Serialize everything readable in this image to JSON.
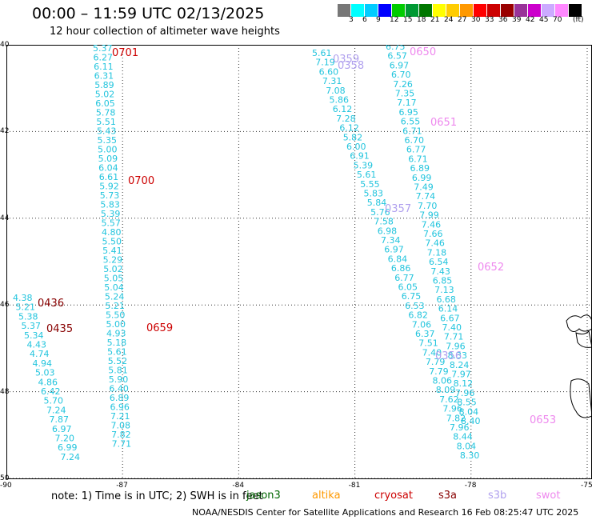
{
  "title": "00:00 – 11:59 UTC 02/13/2025",
  "subtitle": "12 hour collection of altimeter wave heights",
  "colorbar": {
    "colors": [
      "#777777",
      "#00ffff",
      "#00ccff",
      "#0000ff",
      "#00cc00",
      "#009933",
      "#007700",
      "#ffff00",
      "#ffcc00",
      "#ff9900",
      "#ff0000",
      "#cc0000",
      "#990000",
      "#993399",
      "#cc00cc",
      "#ccaaff",
      "#ff88ff",
      "#000000"
    ],
    "labels": [
      "3",
      "6",
      "9",
      "12",
      "15",
      "18",
      "21",
      "24",
      "27",
      "30",
      "33",
      "36",
      "39",
      "42",
      "45",
      "70"
    ],
    "unit": "(ft)"
  },
  "axes": {
    "lat_labels": [
      "40",
      "42",
      "44",
      "46",
      "48",
      "50"
    ],
    "lon_labels": [
      "-90",
      "-87",
      "-84",
      "-81",
      "-78",
      "-75"
    ]
  },
  "tracks": [
    {
      "color": "#22c4dd",
      "values": [
        "5.37",
        "6.27",
        "6.11",
        "6.31",
        "5.89",
        "5.02",
        "6.05",
        "5.78",
        "5.51",
        "5.43",
        "5.35",
        "5.00",
        "5.09",
        "6.04",
        "6.61",
        "5.92",
        "5.73",
        "5.83",
        "5.39",
        "5.57",
        "4.80",
        "5.50",
        "5.41",
        "5.29",
        "5.02",
        "5.05",
        "5.04",
        "5.24",
        "5.21",
        "5.50",
        "5.00",
        "4.93",
        "5.18",
        "5.61",
        "5.52",
        "5.81",
        "5.90",
        "6.40",
        "6.89",
        "6.96",
        "7.21",
        "7.08",
        "7.82",
        "7.71"
      ]
    },
    {
      "color": "#22c4dd",
      "values": [
        "4.38",
        "5.21",
        "5.38",
        "5.37",
        "5.34",
        "4.43",
        "4.74",
        "4.94",
        "5.03",
        "4.86",
        "6.42",
        "5.70",
        "7.24",
        "7.87",
        "6.97",
        "7.20",
        "6.99",
        "7.24"
      ]
    },
    {
      "color": "#22c4dd",
      "values": [
        "5.61",
        "7.19",
        "6.60",
        "7.31",
        "7.08",
        "5.86",
        "6.12",
        "7.28",
        "6.12",
        "5.82",
        "6.00",
        "6.91",
        "5.39",
        "5.61",
        "5.55",
        "5.83",
        "5.84",
        "5.76",
        "7.58",
        "6.98",
        "7.34",
        "6.97",
        "6.84",
        "6.86",
        "6.77",
        "6.05",
        "6.75",
        "6.53",
        "6.82",
        "7.06",
        "6.37",
        "7.51",
        "7.40",
        "7.79",
        "7.79",
        "8.06",
        "8.09",
        "7.62",
        "7.96",
        "7.82",
        "7.96",
        "8.44",
        "8.04",
        "8.30"
      ]
    },
    {
      "color": "#22c4dd",
      "values": [
        "6.75",
        "6.57",
        "6.97",
        "6.70",
        "7.26",
        "7.35",
        "7.17",
        "6.95",
        "6.55",
        "6.71",
        "6.70",
        "6.77",
        "6.71",
        "6.89",
        "6.99",
        "7.49",
        "7.74",
        "7.70",
        "7.99",
        "7.46",
        "7.66",
        "7.46",
        "7.18",
        "6.54",
        "7.43",
        "6.85",
        "7.13",
        "6.68",
        "6.14",
        "6.67",
        "7.40",
        "7.71",
        "7.96",
        "8.33",
        "8.24",
        "7.97",
        "8.12",
        "7.96",
        "8.55",
        "8.04",
        "8.40"
      ]
    }
  ],
  "time_labels": [
    {
      "text": "0701",
      "color": "#cc0000"
    },
    {
      "text": "0700",
      "color": "#cc0000"
    },
    {
      "text": "0659",
      "color": "#cc0000"
    },
    {
      "text": "0436",
      "color": "#880000"
    },
    {
      "text": "0435",
      "color": "#880000"
    },
    {
      "text": "0359",
      "color": "#b0a0ee"
    },
    {
      "text": "0358",
      "color": "#b0a0ee"
    },
    {
      "text": "0357",
      "color": "#b0a0ee"
    },
    {
      "text": "0356",
      "color": "#b0a0ee"
    },
    {
      "text": "0650",
      "color": "#ee88ee"
    },
    {
      "text": "0651",
      "color": "#ee88ee"
    },
    {
      "text": "0652",
      "color": "#ee88ee"
    },
    {
      "text": "0653",
      "color": "#ee88ee"
    }
  ],
  "note": "note:  1) Time is in UTC;  2) SWH is in feet",
  "legend": [
    {
      "label": "jason3",
      "color": "#006600"
    },
    {
      "label": "altika",
      "color": "#ff9900"
    },
    {
      "label": "cryosat",
      "color": "#cc0000"
    },
    {
      "label": "s3a",
      "color": "#880000"
    },
    {
      "label": "s3b",
      "color": "#b0a0ee"
    },
    {
      "label": "swot",
      "color": "#ee88ee"
    }
  ],
  "credit": "NOAA/NESDIS Center for Satellite Applications and Research     16 Feb 08:25:47 UTC 2025"
}
